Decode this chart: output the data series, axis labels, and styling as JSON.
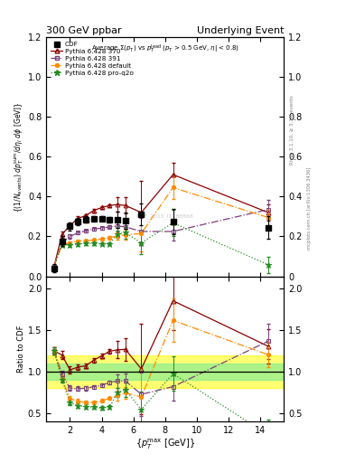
{
  "title_left": "300 GeV ppbar",
  "title_right": "Underlying Event",
  "watermark": "CDF_2015_I1388868",
  "xlabel": "{p_{T}^{max} [GeV]}",
  "ylabel": "{(1/N_{events}) dp^{sum}_{T}/d#eta_{l} d#phi [GeV]}",
  "ylabel_ratio": "Ratio to CDF",
  "ylim_main": [
    0.0,
    1.2
  ],
  "ylim_ratio": [
    0.4,
    2.15
  ],
  "yticks_main": [
    0.0,
    0.2,
    0.4,
    0.6,
    0.8,
    1.0,
    1.2
  ],
  "yticks_ratio": [
    0.5,
    1.0,
    1.5,
    2.0
  ],
  "xlim": [
    0.5,
    15.5
  ],
  "CDF_x": [
    1.0,
    1.5,
    2.0,
    2.5,
    3.0,
    3.5,
    4.0,
    4.5,
    5.0,
    5.5,
    6.5,
    8.5,
    14.5
  ],
  "CDF_y": [
    0.04,
    0.175,
    0.25,
    0.275,
    0.285,
    0.29,
    0.29,
    0.285,
    0.285,
    0.28,
    0.31,
    0.275,
    0.245
  ],
  "CDF_yerr": [
    0.02,
    0.025,
    0.02,
    0.018,
    0.015,
    0.013,
    0.013,
    0.013,
    0.04,
    0.04,
    0.055,
    0.065,
    0.055
  ],
  "P370_x": [
    1.0,
    1.5,
    2.0,
    2.5,
    3.0,
    3.5,
    4.0,
    4.5,
    5.0,
    5.5,
    6.5,
    8.5,
    14.5
  ],
  "P370_y": [
    0.05,
    0.21,
    0.255,
    0.29,
    0.305,
    0.33,
    0.345,
    0.355,
    0.36,
    0.355,
    0.32,
    0.51,
    0.32
  ],
  "P370_yerr": [
    0.008,
    0.015,
    0.012,
    0.01,
    0.008,
    0.008,
    0.008,
    0.008,
    0.035,
    0.04,
    0.16,
    0.06,
    0.04
  ],
  "P391_x": [
    1.0,
    1.5,
    2.0,
    2.5,
    3.0,
    3.5,
    4.0,
    4.5,
    5.0,
    5.5,
    6.5,
    8.5,
    14.5
  ],
  "P391_y": [
    0.05,
    0.17,
    0.2,
    0.218,
    0.228,
    0.237,
    0.242,
    0.248,
    0.252,
    0.248,
    0.225,
    0.225,
    0.335
  ],
  "P391_yerr": [
    0.008,
    0.01,
    0.01,
    0.009,
    0.008,
    0.007,
    0.007,
    0.007,
    0.025,
    0.028,
    0.07,
    0.045,
    0.05
  ],
  "Pdef_x": [
    1.0,
    1.5,
    2.0,
    2.5,
    3.0,
    3.5,
    4.0,
    4.5,
    5.0,
    5.5,
    6.5,
    8.5,
    14.5
  ],
  "Pdef_y": [
    0.05,
    0.16,
    0.168,
    0.177,
    0.178,
    0.182,
    0.188,
    0.193,
    0.203,
    0.208,
    0.215,
    0.445,
    0.295
  ],
  "Pdef_yerr": [
    0.008,
    0.009,
    0.009,
    0.009,
    0.008,
    0.007,
    0.007,
    0.007,
    0.018,
    0.025,
    0.09,
    0.055,
    0.04
  ],
  "Pq2o_x": [
    1.0,
    1.5,
    2.0,
    2.5,
    3.0,
    3.5,
    4.0,
    4.5,
    5.0,
    5.5,
    6.5,
    8.5,
    14.5
  ],
  "Pq2o_y": [
    0.05,
    0.158,
    0.157,
    0.162,
    0.165,
    0.165,
    0.163,
    0.163,
    0.213,
    0.218,
    0.168,
    0.268,
    0.058
  ],
  "Pq2o_yerr": [
    0.008,
    0.009,
    0.009,
    0.009,
    0.008,
    0.007,
    0.007,
    0.007,
    0.018,
    0.028,
    0.055,
    0.065,
    0.04
  ],
  "ratio_P370_y": [
    1.25,
    1.2,
    1.02,
    1.055,
    1.07,
    1.138,
    1.19,
    1.246,
    1.263,
    1.268,
    1.032,
    1.855,
    1.306
  ],
  "ratio_P370_err": [
    0.04,
    0.05,
    0.04,
    0.032,
    0.028,
    0.026,
    0.026,
    0.026,
    0.105,
    0.135,
    0.55,
    0.35,
    0.21
  ],
  "ratio_P391_y": [
    1.25,
    0.97,
    0.8,
    0.793,
    0.8,
    0.817,
    0.834,
    0.87,
    0.886,
    0.886,
    0.726,
    0.818,
    1.367
  ],
  "ratio_P391_err": [
    0.04,
    0.04,
    0.032,
    0.028,
    0.025,
    0.022,
    0.022,
    0.022,
    0.078,
    0.095,
    0.26,
    0.17,
    0.215
  ],
  "ratio_Pdef_y": [
    1.25,
    0.914,
    0.672,
    0.644,
    0.625,
    0.628,
    0.648,
    0.678,
    0.712,
    0.743,
    0.694,
    1.618,
    1.204
  ],
  "ratio_Pdef_err": [
    0.04,
    0.038,
    0.03,
    0.026,
    0.023,
    0.02,
    0.02,
    0.02,
    0.058,
    0.076,
    0.35,
    0.26,
    0.155
  ],
  "ratio_Pq2o_y": [
    1.25,
    0.903,
    0.628,
    0.589,
    0.579,
    0.569,
    0.562,
    0.572,
    0.748,
    0.779,
    0.542,
    0.975,
    0.237
  ],
  "ratio_Pq2o_err": [
    0.04,
    0.038,
    0.03,
    0.026,
    0.023,
    0.02,
    0.02,
    0.02,
    0.058,
    0.09,
    0.22,
    0.21,
    0.18
  ],
  "color_CDF": "#000000",
  "color_P370": "#8b0000",
  "color_P391": "#7b3f7b",
  "color_Pdef": "#ff8c00",
  "color_Pq2o": "#228b22"
}
